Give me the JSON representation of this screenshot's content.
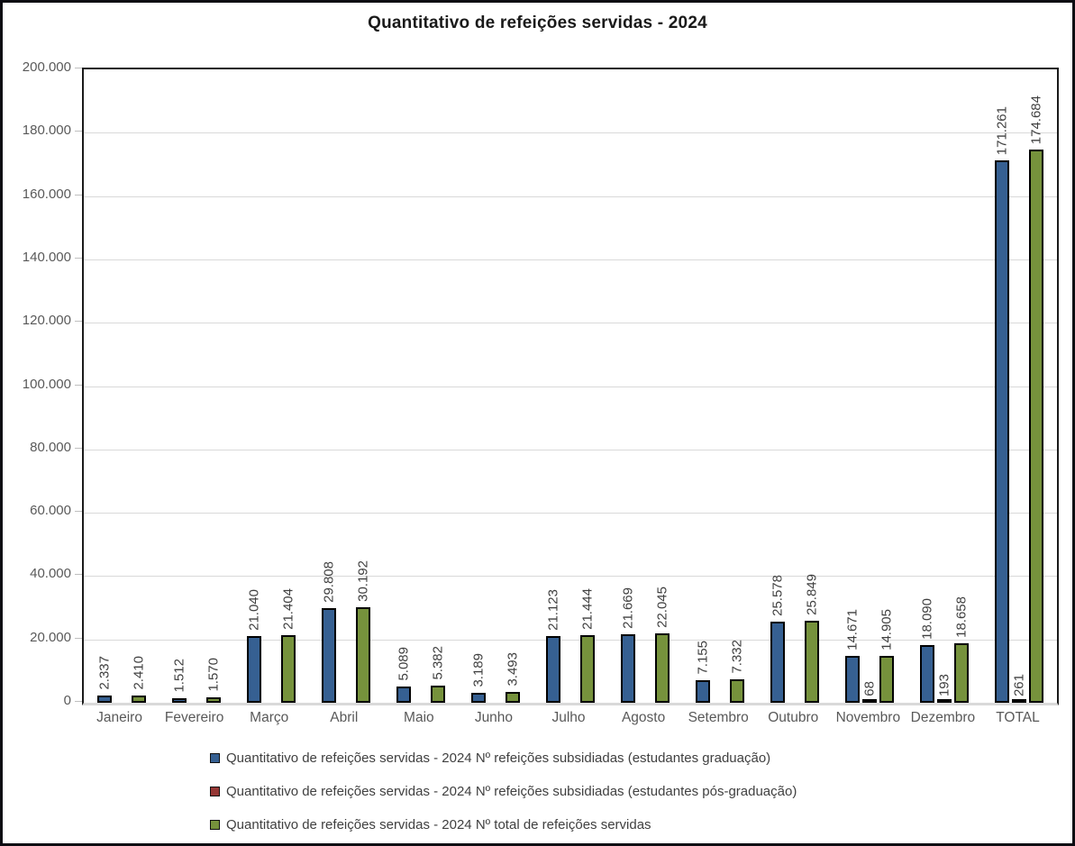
{
  "page": {
    "title": "Quantitativo de refeições servidas - 2024"
  },
  "chart_data": {
    "type": "bar",
    "title": "Quantitativo de refeições servidas - 2024",
    "xlabel": "",
    "ylabel": "",
    "ylim": [
      0,
      200000
    ],
    "ytick_step": 20000,
    "grid": true,
    "legend_position": "bottom",
    "value_labels_rotation": 90,
    "number_format": "thousands-dot",
    "categories": [
      "Janeiro",
      "Fevereiro",
      "Março",
      "Abril",
      "Maio",
      "Junho",
      "Julho",
      "Agosto",
      "Setembro",
      "Outubro",
      "Novembro",
      "Dezembro",
      "TOTAL"
    ],
    "series": [
      {
        "name": "Quantitativo de refeições servidas - 2024 Nº refeições subsidiadas (estudantes graduação)",
        "key": "graduacao",
        "color": "#366092",
        "values": [
          2337,
          1512,
          21040,
          29808,
          5089,
          3189,
          21123,
          21669,
          7155,
          25578,
          14671,
          18090,
          171261
        ]
      },
      {
        "name": "Quantitativo de refeições servidas - 2024 Nº refeições subsidiadas (estudantes pós-graduação)",
        "key": "pos-graduacao",
        "color": "#953735",
        "values": [
          0,
          0,
          0,
          0,
          0,
          0,
          0,
          0,
          0,
          0,
          68,
          193,
          261
        ]
      },
      {
        "name": "Quantitativo de refeições servidas - 2024 Nº total de refeições servidas",
        "key": "total",
        "color": "#76923C",
        "values": [
          2410,
          1570,
          21404,
          30192,
          5382,
          3493,
          21444,
          22045,
          7332,
          25849,
          14905,
          18658,
          174684
        ]
      }
    ]
  },
  "colors": {
    "grid": "#d9d9d9",
    "tick": "#bfbfbf",
    "axis_text": "#595959",
    "value_label_text": "#404040",
    "plot_border": "#1a1a1a",
    "frame_border": "#0b0b12",
    "bar_border": "#000000"
  }
}
